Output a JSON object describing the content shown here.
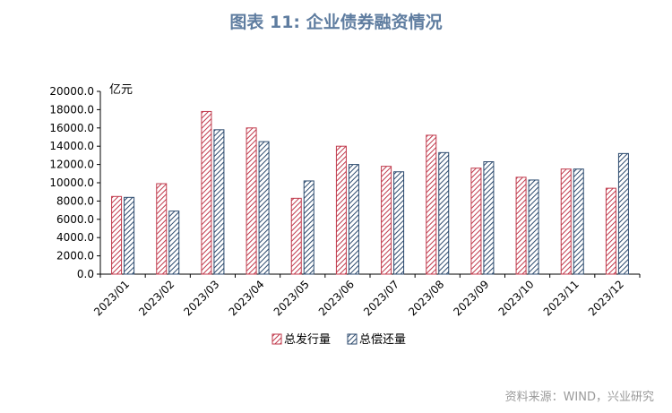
{
  "title": "图表 11: 企业债券融资情况",
  "source": "资料来源：WIND，兴业研究",
  "colors": {
    "title": "#5f7da0",
    "issuance": "#c0394b",
    "repayment": "#2c4a6e",
    "source": "#9a9a9a"
  },
  "chart_data": {
    "type": "bar",
    "pattern": "diagonal-hatch",
    "unit_label": "亿元",
    "categories": [
      "2023/01",
      "2023/02",
      "2023/03",
      "2023/04",
      "2023/05",
      "2023/06",
      "2023/07",
      "2023/08",
      "2023/09",
      "2023/10",
      "2023/11",
      "2023/12"
    ],
    "series": [
      {
        "name": "总发行量",
        "values": [
          8500,
          9900,
          17800,
          16000,
          8300,
          14000,
          11800,
          15200,
          11600,
          10600,
          11500,
          9400
        ]
      },
      {
        "name": "总偿还量",
        "values": [
          8400,
          6900,
          15800,
          14500,
          10200,
          12000,
          11200,
          13300,
          12300,
          10300,
          11500,
          13200
        ]
      }
    ],
    "yticks": [
      "0.0",
      "2000.0",
      "4000.0",
      "6000.0",
      "8000.0",
      "10000.0",
      "12000.0",
      "14000.0",
      "16000.0",
      "18000.0",
      "20000.0"
    ],
    "ylim": [
      0,
      20000
    ],
    "legend_position": "bottom"
  }
}
